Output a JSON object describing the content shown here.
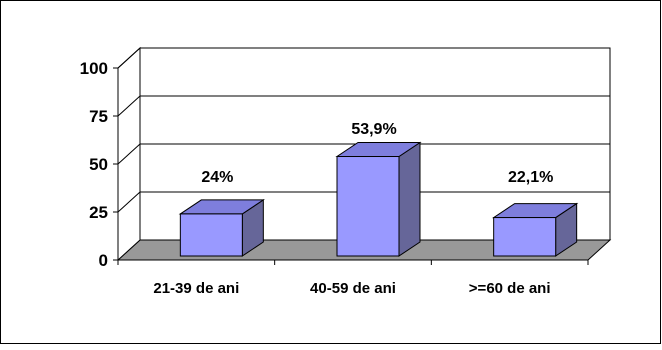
{
  "chart_data": {
    "type": "bar",
    "categories": [
      "21-39 de ani",
      "40-59 de ani",
      ">=60 de ani"
    ],
    "values": [
      24,
      53.9,
      22.1
    ],
    "data_labels": [
      "24%",
      "53,9%",
      "22,1%"
    ],
    "y_ticks": [
      "0",
      "25",
      "50",
      "75",
      "100"
    ],
    "ylim": [
      0,
      100
    ],
    "grid": true,
    "three_d": true,
    "title": "",
    "xlabel": "",
    "ylabel": "",
    "colors": {
      "bar_front": "#9999ff",
      "bar_top": "#7e7edd",
      "bar_side": "#666699",
      "floor": "#999999",
      "wall": "#ffffff",
      "gridline": "#000000"
    }
  }
}
